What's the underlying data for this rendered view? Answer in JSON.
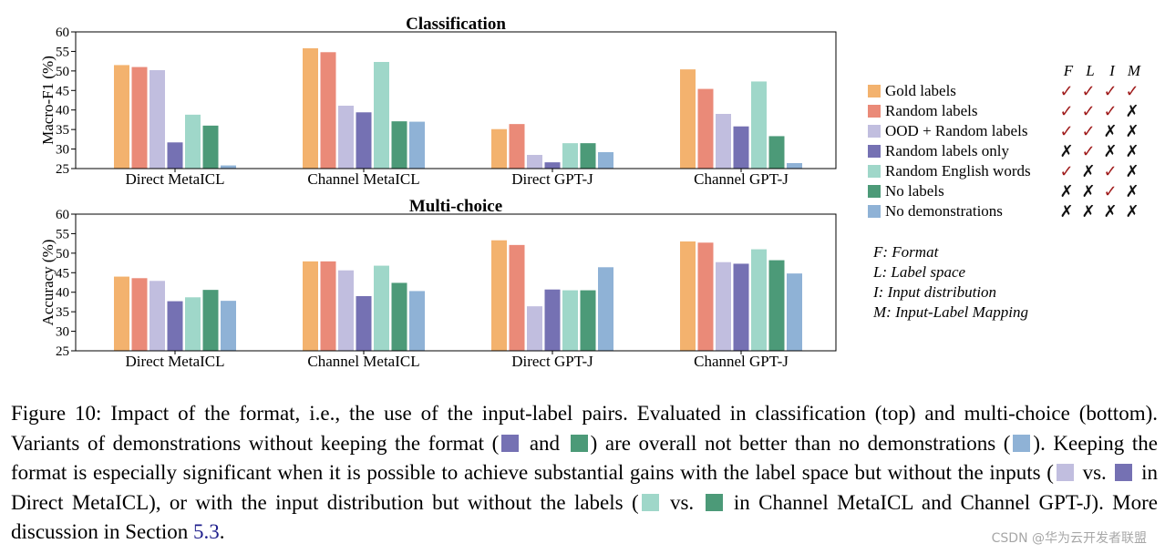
{
  "chart_data": [
    {
      "type": "bar",
      "title": "Classification",
      "ylabel": "Macro-F1 (%)",
      "xlabel": "",
      "ylim": [
        25,
        60
      ],
      "yticks": [
        25,
        30,
        35,
        40,
        45,
        50,
        55,
        60
      ],
      "categories": [
        "Direct MetaICL",
        "Channel MetaICL",
        "Direct GPT-J",
        "Channel GPT-J"
      ],
      "series": [
        {
          "name": "Gold labels",
          "values": [
            51.5,
            55.8,
            35.1,
            50.4
          ]
        },
        {
          "name": "Random labels",
          "values": [
            51.0,
            54.8,
            36.4,
            45.4
          ]
        },
        {
          "name": "OOD + Random labels",
          "values": [
            50.2,
            41.1,
            28.5,
            39.0
          ]
        },
        {
          "name": "Random labels only",
          "values": [
            31.7,
            39.4,
            26.6,
            35.8
          ]
        },
        {
          "name": "Random English words",
          "values": [
            38.8,
            52.3,
            31.5,
            47.3
          ]
        },
        {
          "name": "No labels",
          "values": [
            36.0,
            37.1,
            31.5,
            33.3
          ]
        },
        {
          "name": "No demonstrations",
          "values": [
            25.8,
            37.0,
            29.2,
            26.4
          ]
        }
      ]
    },
    {
      "type": "bar",
      "title": "Multi-choice",
      "ylabel": "Accuracy (%)",
      "xlabel": "",
      "ylim": [
        25,
        60
      ],
      "yticks": [
        25,
        30,
        35,
        40,
        45,
        50,
        55,
        60
      ],
      "categories": [
        "Direct MetaICL",
        "Channel MetaICL",
        "Direct GPT-J",
        "Channel GPT-J"
      ],
      "series": [
        {
          "name": "Gold labels",
          "values": [
            44.0,
            47.9,
            53.3,
            53.0
          ]
        },
        {
          "name": "Random labels",
          "values": [
            43.6,
            47.9,
            52.1,
            52.7
          ]
        },
        {
          "name": "OOD + Random labels",
          "values": [
            42.9,
            45.6,
            36.4,
            47.7
          ]
        },
        {
          "name": "Random labels only",
          "values": [
            37.7,
            39.0,
            40.7,
            47.3
          ]
        },
        {
          "name": "Random English words",
          "values": [
            38.7,
            46.8,
            40.5,
            51.0
          ]
        },
        {
          "name": "No labels",
          "values": [
            40.6,
            42.4,
            40.5,
            48.2
          ]
        },
        {
          "name": "No demonstrations",
          "values": [
            37.8,
            40.3,
            46.4,
            44.8
          ]
        }
      ]
    }
  ],
  "colors": [
    "#f3b26e",
    "#ea8a78",
    "#c1bedf",
    "#7571b3",
    "#9fd7c9",
    "#4c9a78",
    "#8fb2d6"
  ],
  "legend": {
    "headers": [
      "F",
      "L",
      "I",
      "M"
    ],
    "check_symbol": "✓",
    "cross_symbol": "✗",
    "items": [
      {
        "label": "Gold labels",
        "marks": [
          true,
          true,
          true,
          true
        ]
      },
      {
        "label": "Random labels",
        "marks": [
          true,
          true,
          true,
          false
        ]
      },
      {
        "label": "OOD + Random labels",
        "marks": [
          true,
          true,
          false,
          false
        ]
      },
      {
        "label": "Random labels only",
        "marks": [
          false,
          true,
          false,
          false
        ]
      },
      {
        "label": "Random English words",
        "marks": [
          true,
          false,
          true,
          false
        ]
      },
      {
        "label": "No labels",
        "marks": [
          false,
          false,
          true,
          false
        ]
      },
      {
        "label": "No demonstrations",
        "marks": [
          false,
          false,
          false,
          false
        ]
      }
    ],
    "definitions": [
      "F: Format",
      "L: Label space",
      "I: Input distribution",
      "M: Input-Label Mapping"
    ]
  },
  "caption": {
    "p1": "Figure 10: Impact of the format, i.e., the use of the input-label pairs. Evaluated in classification (top) and multi-choice (bottom). Variants of demonstrations without keeping the format (",
    "and1": " and ",
    "p2": ") are overall not better than no demonstrations (",
    "p3": "). Keeping the format is especially significant when it is possible to achieve substantial gains with the label space but without the inputs (",
    "vs1": " vs. ",
    "p4": " in Direct MetaICL), or with the input distribution but without the labels (",
    "vs2": " vs. ",
    "p5": " in Channel MetaICL and Channel GPT-J). More discussion in Section ",
    "ref": "5.3",
    "end": "."
  },
  "watermark": "CSDN @华为云开发者联盟"
}
